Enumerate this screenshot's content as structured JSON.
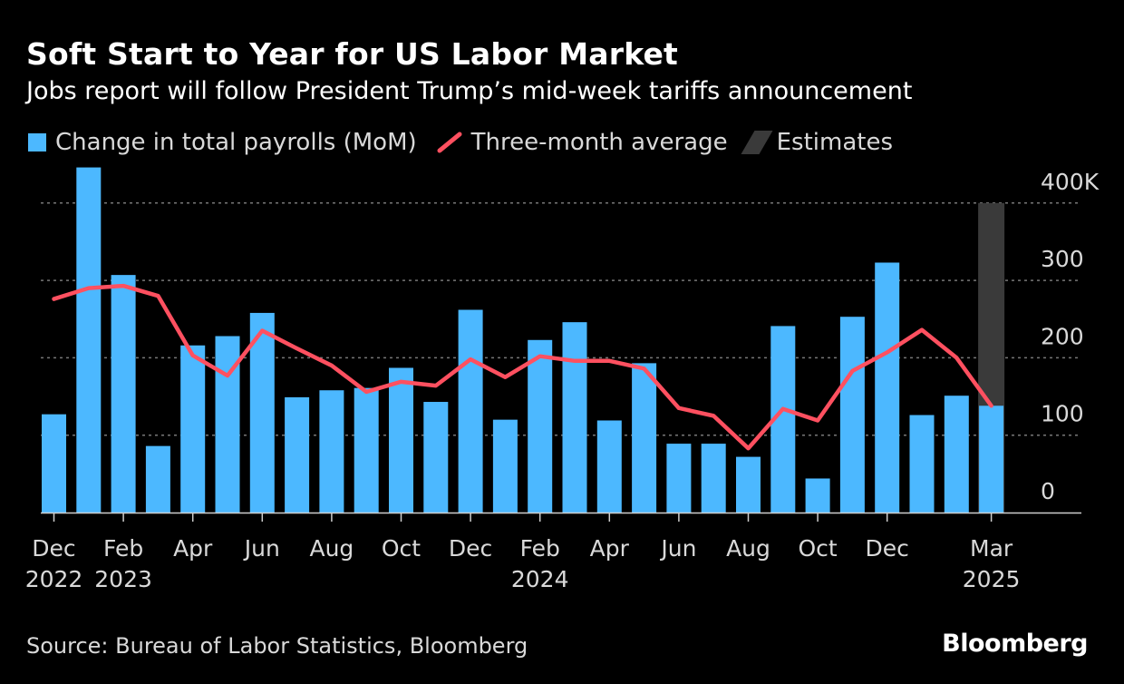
{
  "title": "Soft Start to Year for US Labor Market",
  "subtitle": "Jobs report will follow President Trump’s mid-week tariffs announcement",
  "legend": {
    "bars": "Change in total payrolls (MoM)",
    "line": "Three-month average",
    "estimates": "Estimates"
  },
  "source": "Source: Bureau of Labor Statistics, Bloomberg",
  "brand": "Bloomberg",
  "colors": {
    "bar": "#4cb8ff",
    "line": "#ff5060",
    "estimate": "#3a3a3a",
    "grid": "#777777",
    "background": "#000000"
  },
  "chart_data": {
    "type": "bar",
    "title": "Soft Start to Year for US Labor Market",
    "xlabel": "",
    "ylabel": "",
    "ylim": [
      0,
      400
    ],
    "y_ticks": [
      {
        "value": 400,
        "label": "400K"
      },
      {
        "value": 300,
        "label": "300"
      },
      {
        "value": 200,
        "label": "200"
      },
      {
        "value": 100,
        "label": "100"
      },
      {
        "value": 0,
        "label": "0"
      }
    ],
    "categories": [
      "Dec 2022",
      "Jan 2023",
      "Feb 2023",
      "Mar 2023",
      "Apr 2023",
      "May 2023",
      "Jun 2023",
      "Jul 2023",
      "Aug 2023",
      "Sep 2023",
      "Oct 2023",
      "Nov 2023",
      "Dec 2023",
      "Jan 2024",
      "Feb 2024",
      "Mar 2024",
      "Apr 2024",
      "May 2024",
      "Jun 2024",
      "Jul 2024",
      "Aug 2024",
      "Sep 2024",
      "Oct 2024",
      "Nov 2024",
      "Dec 2024",
      "Jan 2025",
      "Feb 2025",
      "Mar 2025"
    ],
    "x_tick_labels": [
      {
        "index": 0,
        "line1": "Dec",
        "line2": "2022"
      },
      {
        "index": 2,
        "line1": "Feb",
        "line2": "2023"
      },
      {
        "index": 4,
        "line1": "Apr",
        "line2": ""
      },
      {
        "index": 6,
        "line1": "Jun",
        "line2": ""
      },
      {
        "index": 8,
        "line1": "Aug",
        "line2": ""
      },
      {
        "index": 10,
        "line1": "Oct",
        "line2": ""
      },
      {
        "index": 12,
        "line1": "Dec",
        "line2": ""
      },
      {
        "index": 14,
        "line1": "Feb",
        "line2": "2024"
      },
      {
        "index": 16,
        "line1": "Apr",
        "line2": ""
      },
      {
        "index": 18,
        "line1": "Jun",
        "line2": ""
      },
      {
        "index": 20,
        "line1": "Aug",
        "line2": ""
      },
      {
        "index": 22,
        "line1": "Oct",
        "line2": ""
      },
      {
        "index": 24,
        "line1": "Dec",
        "line2": ""
      },
      {
        "index": 27,
        "line1": "Mar",
        "line2": "2025"
      }
    ],
    "series": [
      {
        "name": "Change in total payrolls (MoM)",
        "type": "bar",
        "values": [
          127,
          446,
          307,
          86,
          216,
          228,
          258,
          149,
          158,
          161,
          187,
          143,
          262,
          120,
          223,
          246,
          119,
          193,
          89,
          89,
          72,
          241,
          44,
          253,
          323,
          126,
          151,
          138
        ]
      },
      {
        "name": "Three-month average",
        "type": "line",
        "values": [
          276,
          290,
          293,
          280,
          203,
          177,
          235,
          212,
          190,
          156,
          169,
          164,
          198,
          175,
          202,
          196,
          196,
          186,
          135,
          125,
          83,
          134,
          119,
          183,
          207,
          236,
          200,
          138
        ]
      }
    ],
    "estimates": {
      "from_index": 27,
      "to_index": 27,
      "range": [
        0,
        400
      ]
    }
  }
}
